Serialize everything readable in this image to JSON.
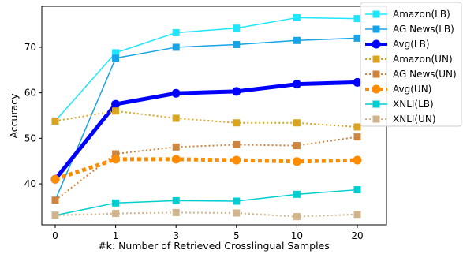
{
  "chart_data": {
    "type": "line",
    "xlabel": "#k: Number of Retrieved Crosslingual Samples",
    "ylabel": "Accuracy",
    "categories": [
      "0",
      "1",
      "3",
      "5",
      "10",
      "20"
    ],
    "ylim": [
      31,
      79
    ],
    "yticks": [
      40,
      50,
      60,
      70
    ],
    "grid": false,
    "legend_position": "right, outside top",
    "series": [
      {
        "name": "Amazon(LB)",
        "values": [
          53.8,
          68.8,
          73.2,
          74.2,
          76.5,
          76.3
        ],
        "color": "#1ee6ff",
        "style": "solid",
        "marker": "square",
        "width": 1.5
      },
      {
        "name": "AG News(LB)",
        "values": [
          36.4,
          67.6,
          70.0,
          70.6,
          71.5,
          72.0
        ],
        "color": "#16a3e8",
        "style": "solid",
        "marker": "square",
        "width": 1.5
      },
      {
        "name": "Avg(LB)",
        "values": [
          41.0,
          57.5,
          59.9,
          60.3,
          61.9,
          62.3
        ],
        "color": "#0000ff",
        "style": "solid",
        "marker": "circle",
        "width": 5
      },
      {
        "name": "Amazon(UN)",
        "values": [
          53.8,
          56.0,
          54.4,
          53.4,
          53.4,
          52.5
        ],
        "color": "#d9a520",
        "style": "dotted",
        "marker": "square",
        "width": 2
      },
      {
        "name": "AG News(UN)",
        "values": [
          36.4,
          46.6,
          48.1,
          48.6,
          48.4,
          50.3
        ],
        "color": "#cd853f",
        "style": "dotted",
        "marker": "square",
        "width": 2
      },
      {
        "name": "Avg(UN)",
        "values": [
          41.0,
          45.4,
          45.4,
          45.2,
          44.9,
          45.2
        ],
        "color": "#ff8c00",
        "style": "dotted",
        "marker": "circle",
        "width": 5
      },
      {
        "name": "XNLI(LB)",
        "values": [
          33.1,
          35.8,
          36.3,
          36.2,
          37.7,
          38.7
        ],
        "color": "#00ced1",
        "style": "solid",
        "marker": "square",
        "width": 1.5
      },
      {
        "name": "XNLI(UN)",
        "values": [
          33.1,
          33.5,
          33.7,
          33.6,
          32.8,
          33.3
        ],
        "color": "#d2b48c",
        "style": "dotted",
        "marker": "square",
        "width": 2
      }
    ]
  }
}
